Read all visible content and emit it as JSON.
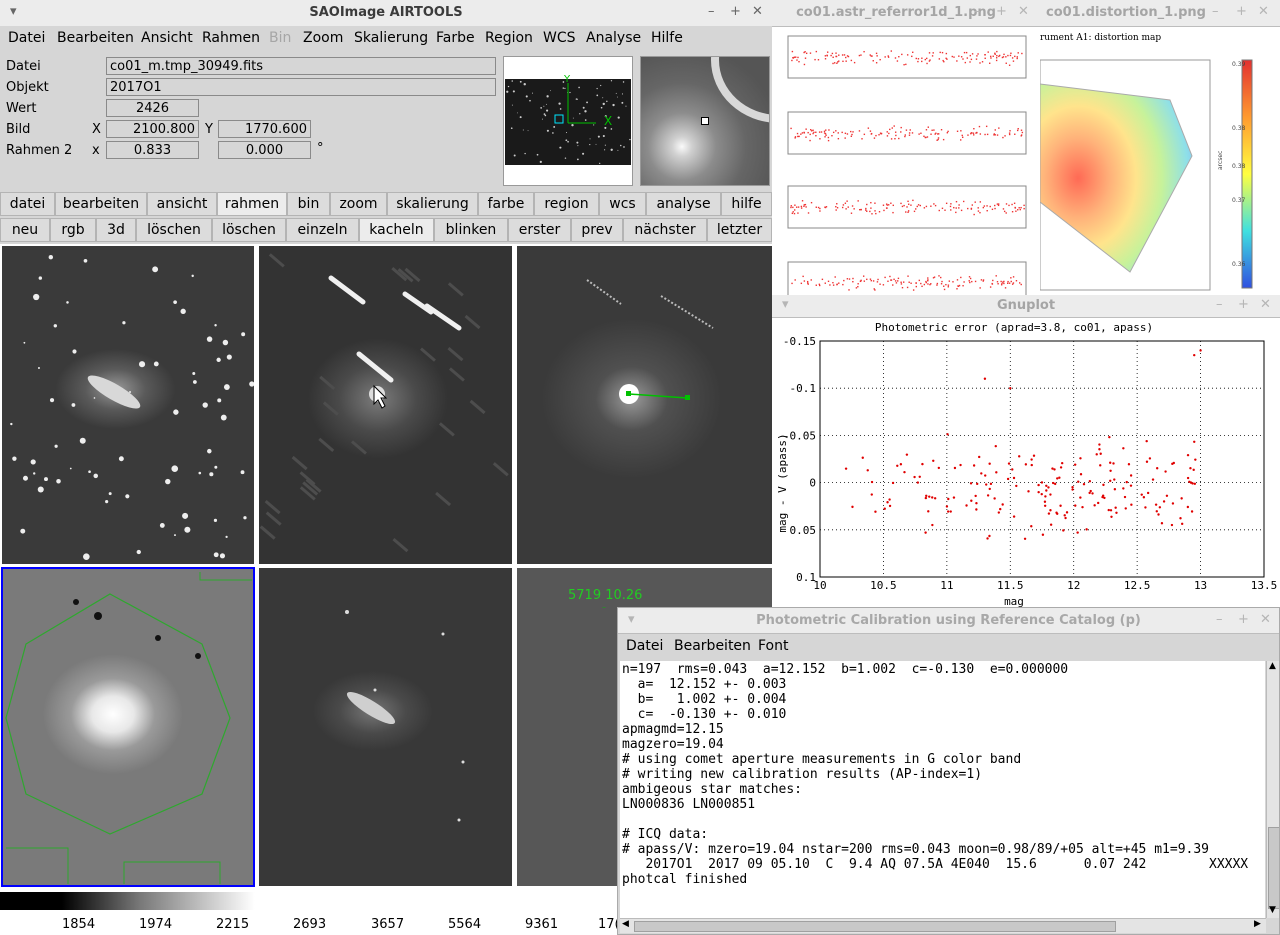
{
  "ds9": {
    "title": "SAOImage AIRTOOLS",
    "menu": [
      "Datei",
      "Bearbeiten",
      "Ansicht",
      "Rahmen",
      "Bin",
      "Zoom",
      "Skalierung",
      "Farbe",
      "Region",
      "WCS",
      "Analyse",
      "Hilfe"
    ],
    "info": {
      "datei_label": "Datei",
      "datei_value": "co01_m.tmp_30949.fits",
      "objekt_label": "Objekt",
      "objekt_value": "2017O1",
      "wert_label": "Wert",
      "wert_value": "2426",
      "bild_label": "Bild",
      "bild_x_label": "X",
      "bild_x": "2100.800",
      "bild_y_label": "Y",
      "bild_y": "1770.600",
      "rahmen_label": "Rahmen 2",
      "rahmen_x_label": "x",
      "rahmen_x": "0.833",
      "rahmen_angle": "0.000",
      "degree": "°"
    },
    "panner_x_label": "X",
    "panner_y_label": "Y",
    "buttons_main": [
      "datei",
      "bearbeiten",
      "ansicht",
      "rahmen",
      "bin",
      "zoom",
      "skalierung",
      "farbe",
      "region",
      "wcs",
      "analyse",
      "hilfe"
    ],
    "buttons_sub": [
      "neu",
      "rgb",
      "3d",
      "löschen",
      "löschen",
      "einzeln",
      "kacheln",
      "blinken",
      "erster",
      "prev",
      "nächster",
      "letzter"
    ],
    "active_main": "rahmen",
    "active_sub": "kacheln",
    "annotation": "5719 10.26",
    "colorbar_ticks": [
      "1854",
      "1974",
      "2215",
      "2693",
      "3657",
      "5564",
      "9361",
      "17("
    ]
  },
  "window_referror": {
    "title": "co01.astr_referror1d_1.png"
  },
  "window_distortion": {
    "title": "co01.distortion_1.png",
    "heading": "rument A1: distortion map",
    "colorbar_label": "arcsec",
    "colorbar_ticks": [
      "0.39",
      "0.38",
      "0.38",
      "0.37",
      "0.36"
    ]
  },
  "gnuplot": {
    "title": "Gnuplot",
    "chart_data": {
      "type": "scatter",
      "title": "Photometric error (aprad=3.8, co01, apass)",
      "xlabel": "mag",
      "ylabel": "mag - V (apass)",
      "xlim": [
        10,
        13.5
      ],
      "ylim": [
        0.1,
        -0.15
      ],
      "x_ticks": [
        "10",
        "10.5",
        "11",
        "11.5",
        "12",
        "12.5",
        "13",
        "13.5"
      ],
      "y_ticks": [
        "-0.15",
        "-0.1",
        "-0.05",
        "0",
        "0.05",
        "0.1"
      ],
      "grid": true,
      "color": "#e00000",
      "points_note": "approx. 197 red points (n=197)"
    }
  },
  "photcal": {
    "title": "Photometric Calibration using Reference Catalog (p)",
    "menu": [
      "Datei",
      "Bearbeiten",
      "Font"
    ],
    "lines": [
      "n=197  rms=0.043  a=12.152  b=1.002  c=-0.130  e=0.000000",
      "  a=  12.152 +- 0.003",
      "  b=   1.002 +- 0.004",
      "  c=  -0.130 +- 0.010",
      "apmagmd=12.15",
      "magzero=19.04",
      "# using comet aperture measurements in G color band",
      "# writing new calibration results (AP-index=1)",
      "ambigeous star matches:",
      "LN000836 LN000851",
      "",
      "# ICQ data:",
      "# apass/V: mzero=19.04 nstar=200 rms=0.043 moon=0.98/89/+05 alt=+45 m1=9.39",
      "   2017O1  2017 09 05.10  C  9.4 AQ 07.5A 4E040  15.6      0.07 242        XXXXX",
      "photcal finished"
    ]
  }
}
